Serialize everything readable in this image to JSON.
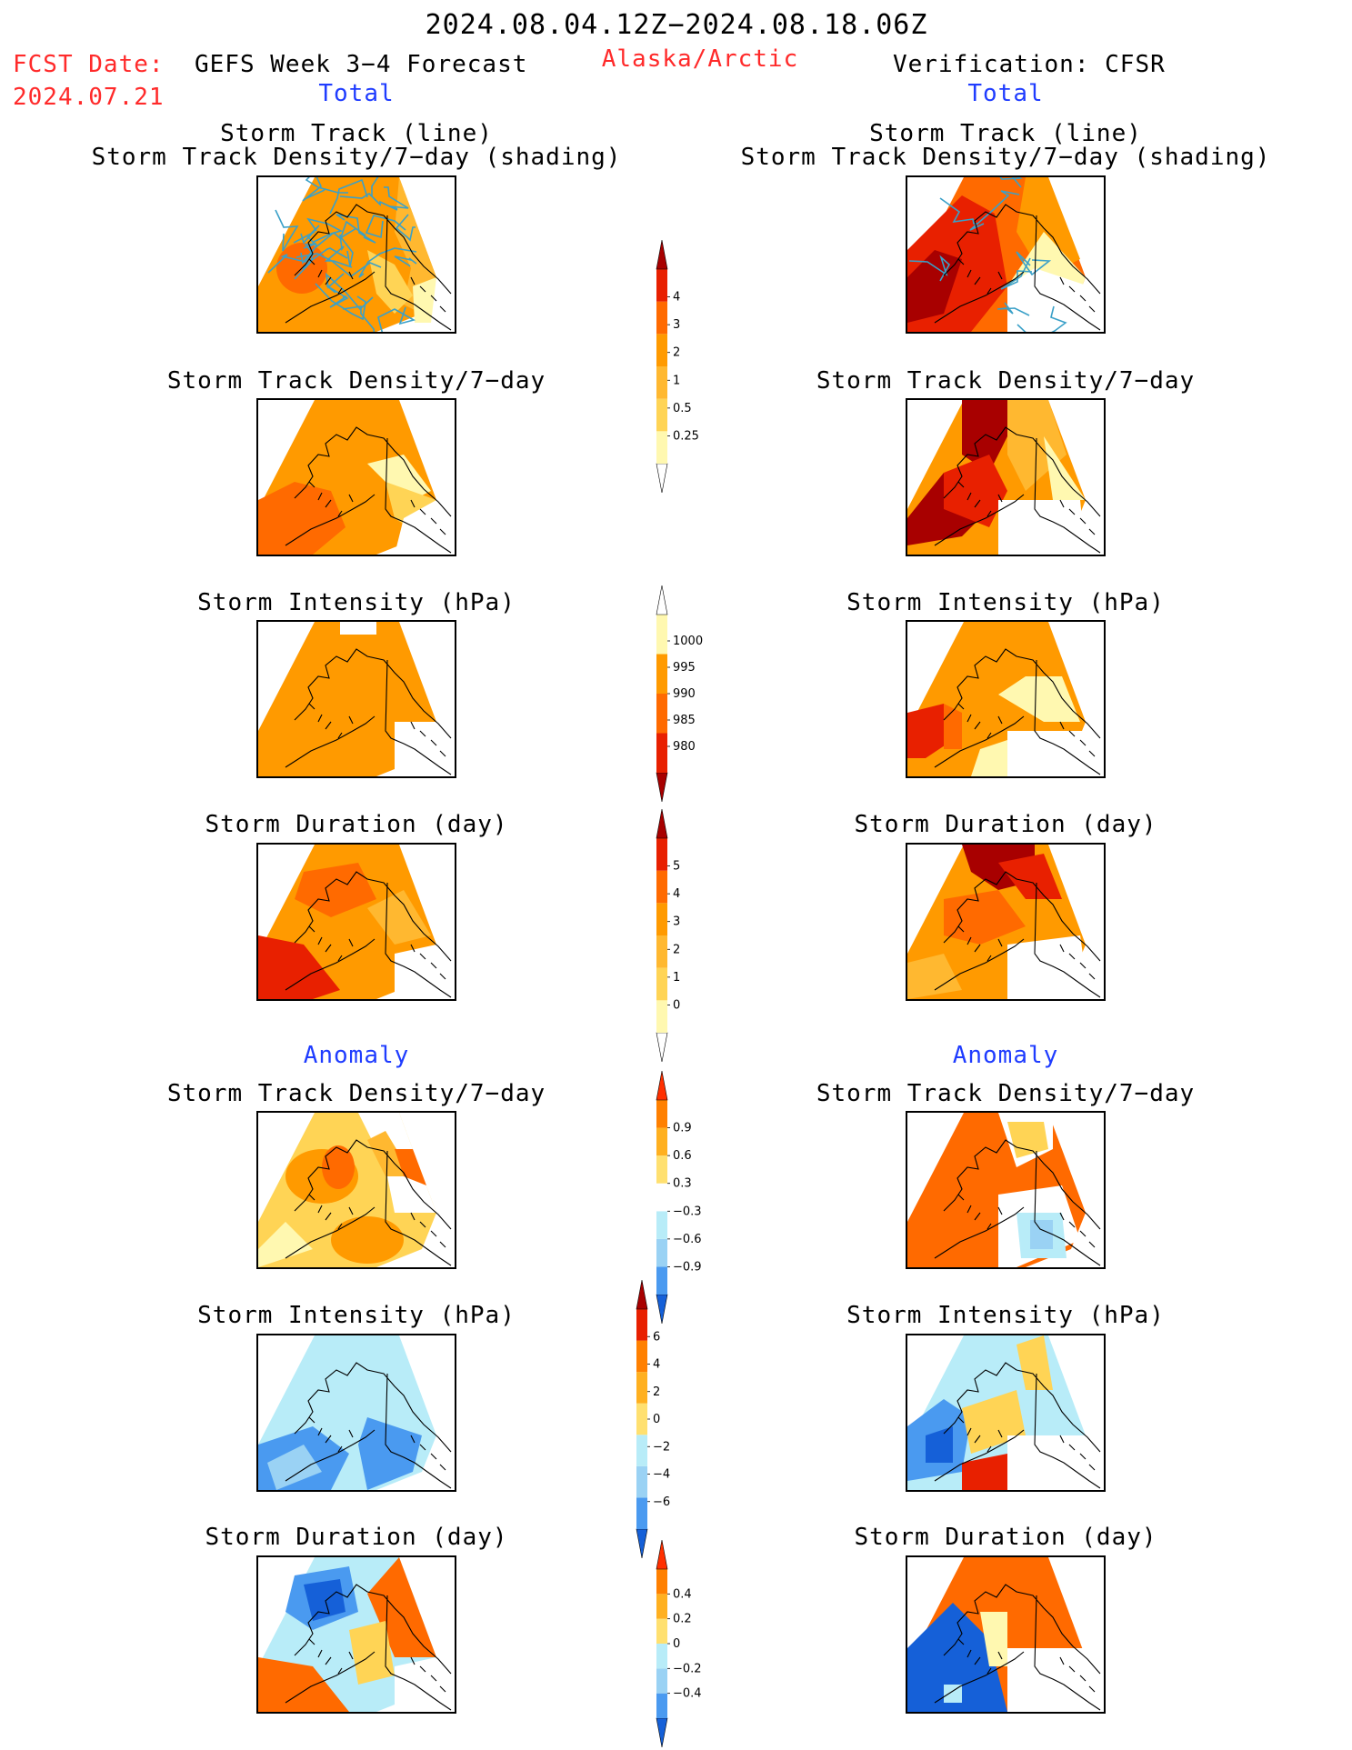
{
  "header": {
    "date_range": "2024.08.04.12Z−2024.08.18.06Z",
    "fcst_label": "FCST Date:",
    "fcst_date": "2024.07.21",
    "forecast_title": "GEFS Week 3−4 Forecast",
    "region": "Alaska/Arctic",
    "verification": "Verification: CFSR"
  },
  "sections": {
    "total": "Total",
    "anomaly": "Anomaly"
  },
  "panel_titles": {
    "track_line": "Storm Track (line)",
    "track_shading": "Storm Track Density/7−day (shading)",
    "density": "Storm Track Density/7−day",
    "intensity": "Storm Intensity (hPa)",
    "duration": "Storm Duration (day)"
  },
  "colors": {
    "pale_yellow": "#fff8b0",
    "yellow": "#ffd455",
    "light_orange": "#ffb830",
    "orange": "#ff9a00",
    "dark_orange": "#ff6a00",
    "red": "#e82000",
    "dark_red": "#a80000",
    "white": "#ffffff",
    "light_blue": "#b8ecf8",
    "sky_blue": "#9ad2f4",
    "blue": "#4a9af0",
    "dark_blue": "#1560d8",
    "track_line": "#3aa0c8",
    "land_outline": "#000000"
  },
  "chart_data": [
    {
      "type": "heatmap",
      "name": "forecast-total-track",
      "title": "Storm Track (line) / Storm Track Density/7−day (shading)",
      "column": "forecast",
      "section": "Total"
    },
    {
      "type": "heatmap",
      "name": "verification-total-track",
      "title": "Storm Track (line) / Storm Track Density/7−day (shading)",
      "column": "verification",
      "section": "Total"
    },
    {
      "type": "heatmap",
      "name": "forecast-total-density",
      "title": "Storm Track Density/7−day",
      "column": "forecast",
      "section": "Total"
    },
    {
      "type": "heatmap",
      "name": "verification-total-density",
      "title": "Storm Track Density/7−day",
      "column": "verification",
      "section": "Total"
    },
    {
      "type": "heatmap",
      "name": "forecast-total-intensity",
      "title": "Storm Intensity (hPa)",
      "column": "forecast",
      "section": "Total"
    },
    {
      "type": "heatmap",
      "name": "verification-total-intensity",
      "title": "Storm Intensity (hPa)",
      "column": "verification",
      "section": "Total"
    },
    {
      "type": "heatmap",
      "name": "forecast-total-duration",
      "title": "Storm Duration (day)",
      "column": "forecast",
      "section": "Total"
    },
    {
      "type": "heatmap",
      "name": "verification-total-duration",
      "title": "Storm Duration (day)",
      "column": "verification",
      "section": "Total"
    },
    {
      "type": "heatmap",
      "name": "forecast-anomaly-density",
      "title": "Storm Track Density/7−day",
      "column": "forecast",
      "section": "Anomaly"
    },
    {
      "type": "heatmap",
      "name": "verification-anomaly-density",
      "title": "Storm Track Density/7−day",
      "column": "verification",
      "section": "Anomaly"
    },
    {
      "type": "heatmap",
      "name": "forecast-anomaly-intensity",
      "title": "Storm Intensity (hPa)",
      "column": "forecast",
      "section": "Anomaly"
    },
    {
      "type": "heatmap",
      "name": "verification-anomaly-intensity",
      "title": "Storm Intensity (hPa)",
      "column": "verification",
      "section": "Anomaly"
    },
    {
      "type": "heatmap",
      "name": "forecast-anomaly-duration",
      "title": "Storm Duration (day)",
      "column": "forecast",
      "section": "Anomaly"
    },
    {
      "type": "heatmap",
      "name": "verification-anomaly-duration",
      "title": "Storm Duration (day)",
      "column": "verification",
      "section": "Anomaly"
    }
  ],
  "colorbars": {
    "density_total": {
      "ticks": [
        "0.25",
        "0.5",
        "1",
        "2",
        "3",
        "4"
      ],
      "colors": [
        "#ffffff",
        "#fff8b0",
        "#ffd455",
        "#ffb830",
        "#ff9a00",
        "#ff6a00",
        "#e82000",
        "#a80000"
      ]
    },
    "intensity_total": {
      "ticks": [
        "980",
        "985",
        "990",
        "995",
        "1000"
      ],
      "colors": [
        "#a80000",
        "#e82000",
        "#ff6a00",
        "#ff9a00",
        "#fff8b0",
        "#ffffff"
      ]
    },
    "duration_total": {
      "ticks": [
        "0",
        "1",
        "2",
        "3",
        "4",
        "5"
      ],
      "colors": [
        "#ffffff",
        "#fff8b0",
        "#ffd455",
        "#ffb830",
        "#ff9a00",
        "#ff6a00",
        "#e82000",
        "#a80000"
      ]
    },
    "density_anom": {
      "ticks": [
        "−0.9",
        "−0.6",
        "−0.3",
        "0.3",
        "0.6",
        "0.9"
      ],
      "colors": [
        "#1560d8",
        "#4a9af0",
        "#9ad2f4",
        "#b8ecf8",
        "#ffffff",
        "#ffe070",
        "#ffb020",
        "#ff8000",
        "#ff3000"
      ]
    },
    "intensity_anom": {
      "ticks": [
        "−6",
        "−4",
        "−2",
        "0",
        "2",
        "4",
        "6"
      ],
      "colors": [
        "#1560d8",
        "#4a9af0",
        "#9ad2f4",
        "#b8ecf8",
        "#ffe070",
        "#ffb020",
        "#ff8000",
        "#e82000",
        "#a80000"
      ]
    },
    "duration_anom": {
      "ticks": [
        "−0.4",
        "−0.2",
        "0",
        "0.2",
        "0.4"
      ],
      "colors": [
        "#1560d8",
        "#4a9af0",
        "#9ad2f4",
        "#b8ecf8",
        "#ffe070",
        "#ffb020",
        "#ff8000",
        "#ff3000"
      ]
    }
  }
}
